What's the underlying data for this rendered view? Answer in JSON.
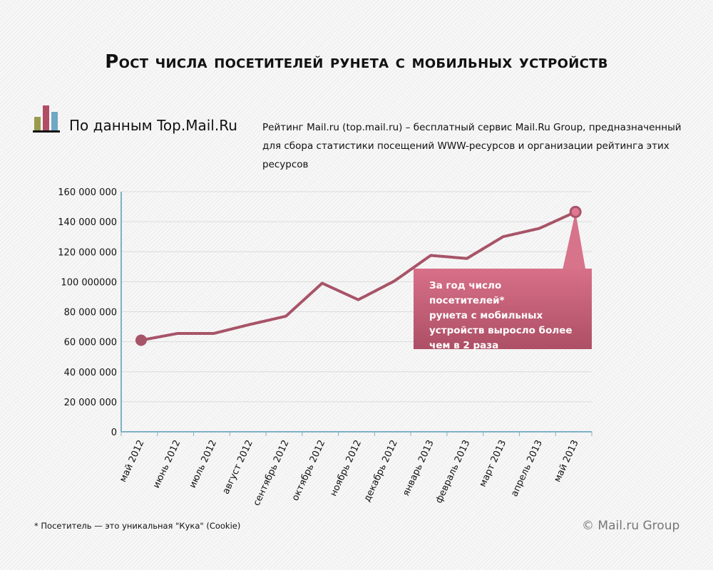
{
  "title": "Рост числа посетителей рунета с мобильных устройств",
  "source": "По данным Top.Mail.Ru",
  "description": [
    "Рейтинг Mail.ru (top.mail.ru) – бесплатный сервис Mail.Ru Group, предназначенный",
    "для сбора статистики посещений WWW-ресурсов и организации рейтинга этих ресурсов"
  ],
  "callout": [
    "За год число посетителей*",
    "рунета с мобильных",
    "устройств выросло более",
    "чем в 2 раза"
  ],
  "footnote": "* Посетитель — это уникальная \"Кука\" (Cookie)",
  "copyright": "© Mail.ru Group",
  "colors": {
    "line": "#a85468",
    "axis": "#7fb0c4",
    "callout": "#c45c74",
    "logo": [
      "#9a9a4e",
      "#b04e66",
      "#6fa7c4"
    ]
  },
  "chart_data": {
    "type": "line",
    "categories": [
      "май 2012",
      "июнь 2012",
      "июль 2012",
      "август 2012",
      "сентябрь 2012",
      "октябрь 2012",
      "ноябрь 2012",
      "декабрь 2012",
      "январь 2013",
      "февраль 2013",
      "март 2013",
      "апрель 2013",
      "май 2013"
    ],
    "values": [
      61000000,
      65500000,
      65500000,
      71500000,
      77000000,
      99000000,
      88000000,
      100500000,
      117500000,
      115500000,
      130000000,
      135500000,
      146500000
    ],
    "ylim": [
      0,
      160000000
    ],
    "yticks": [
      "0",
      "20 000 000",
      "40 000 000",
      "60 000 000",
      "80 000 000",
      "100 000000",
      "120 000 000",
      "140 000 000",
      "160 000 000"
    ],
    "grid": true,
    "highlighted_points": [
      "май 2012",
      "май 2013"
    ]
  }
}
